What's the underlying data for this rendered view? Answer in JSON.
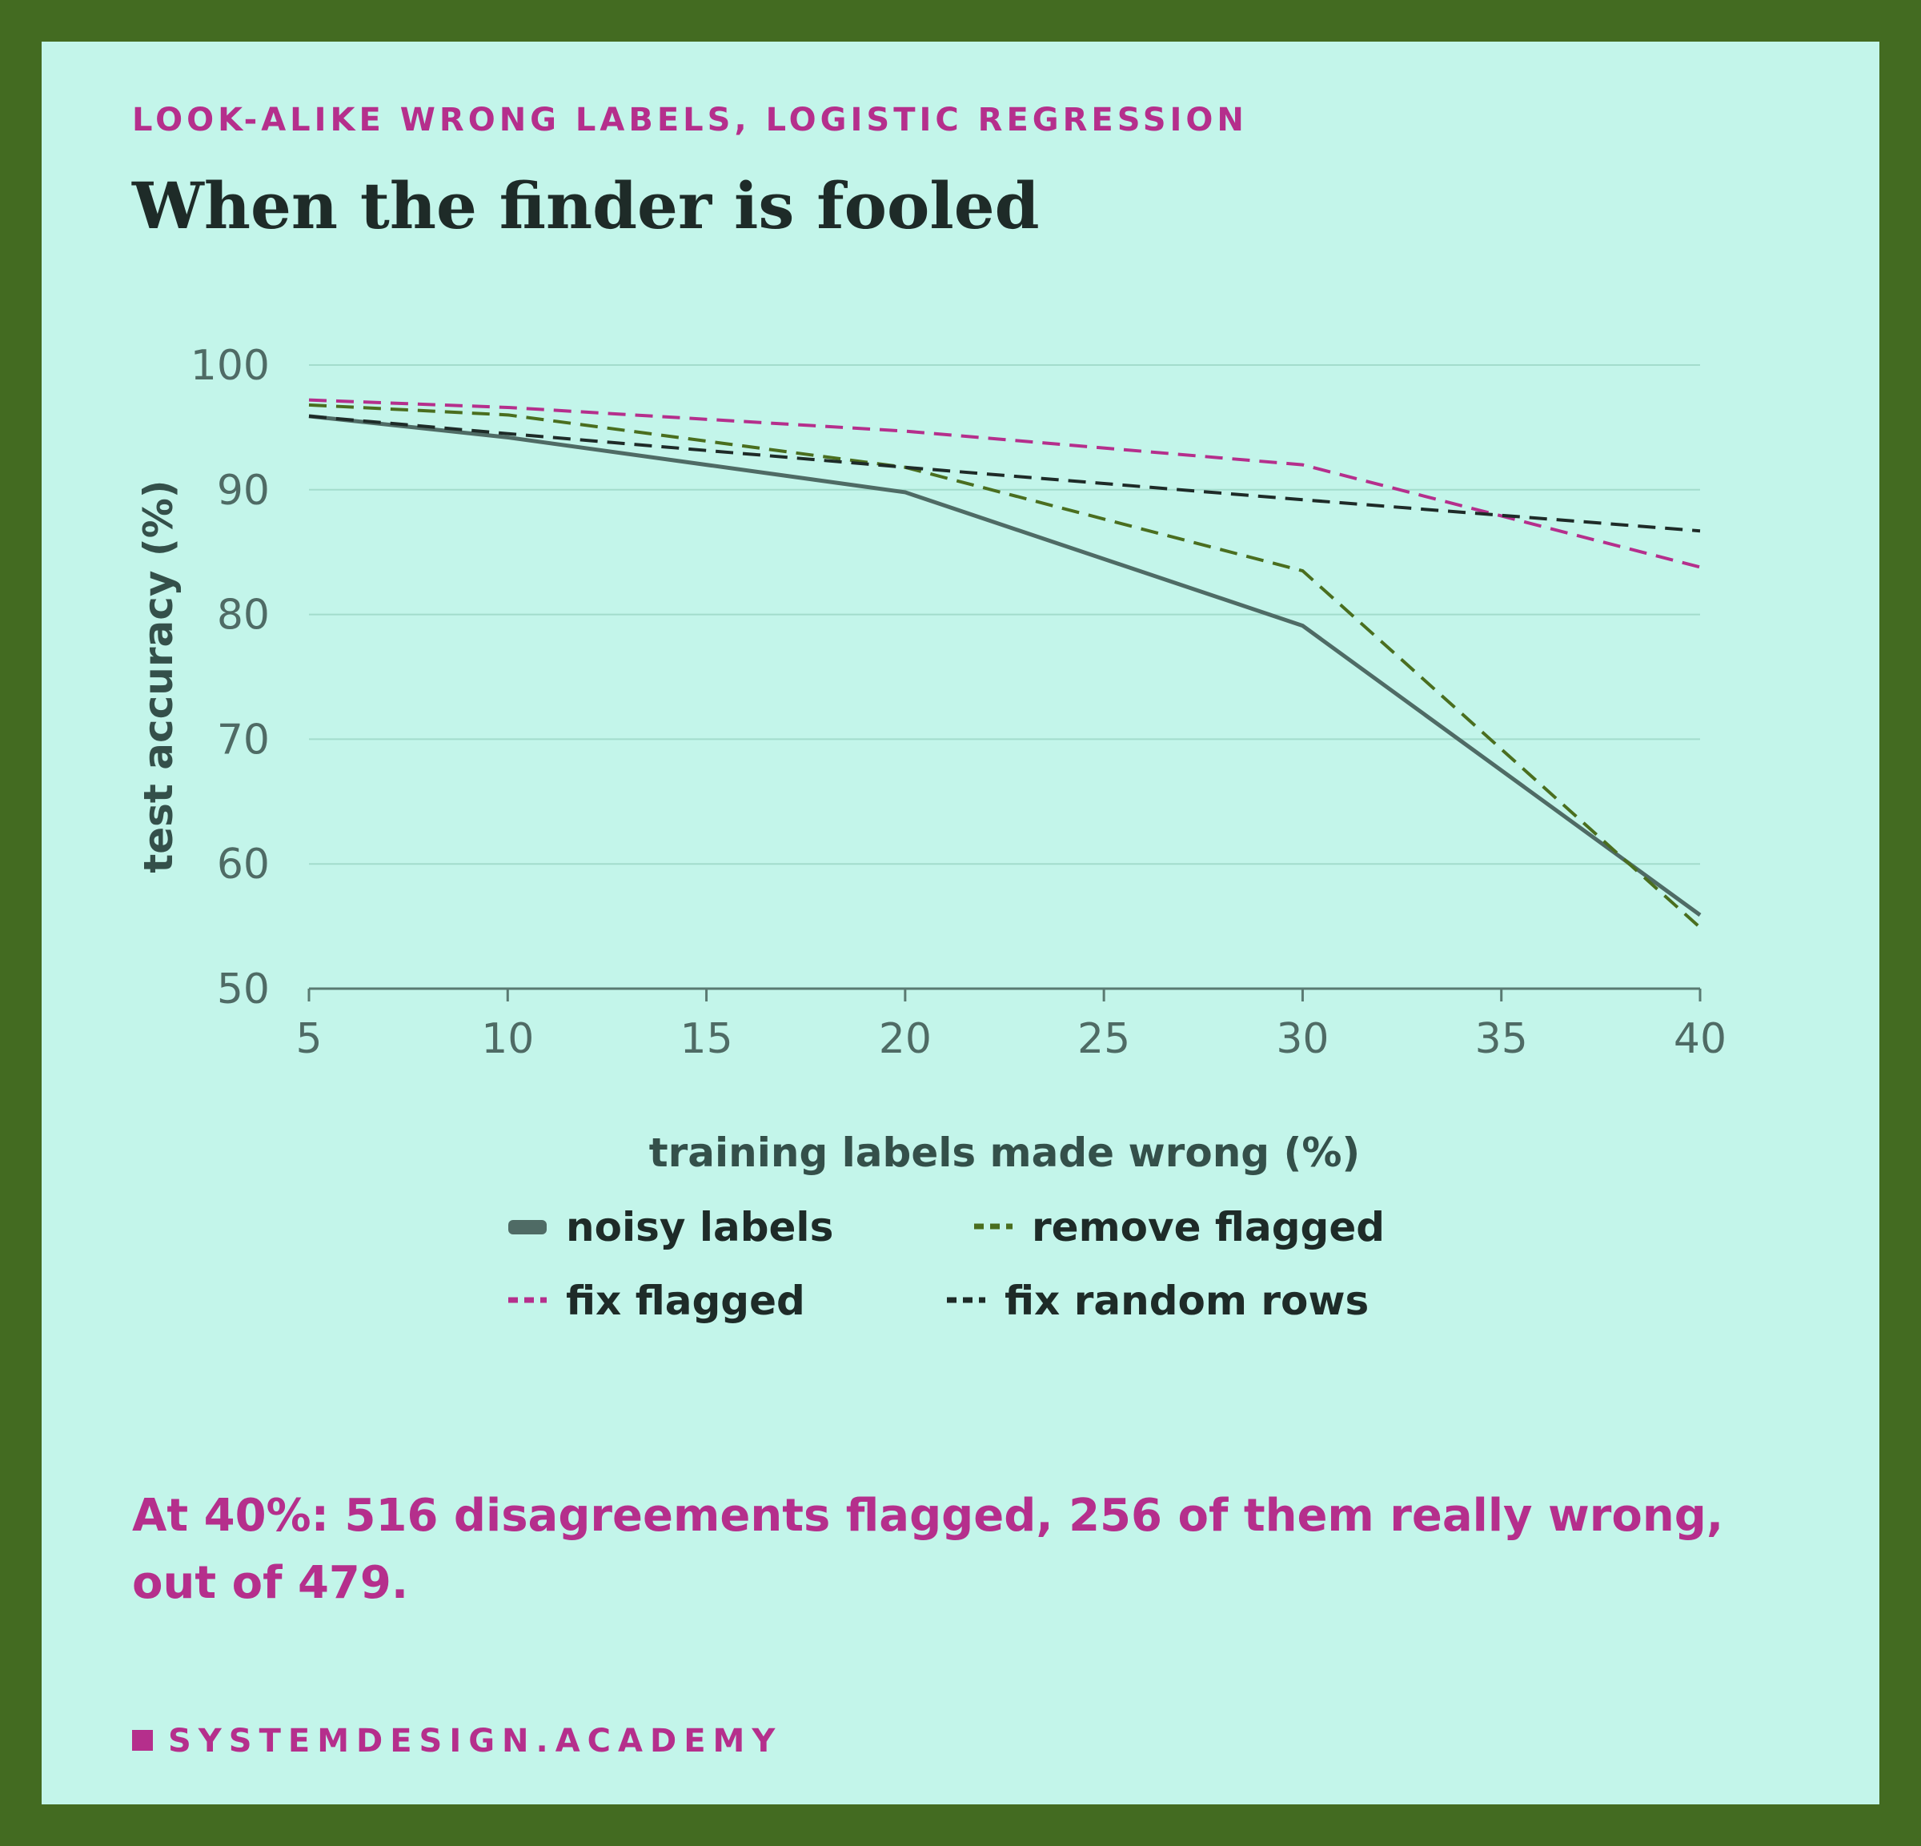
{
  "chart_data": {
    "type": "line",
    "subtitle": "LOOK-ALIKE WRONG LABELS, LOGISTIC REGRESSION",
    "title": "When the finder is fooled",
    "x_label": "training labels made wrong (%)",
    "y_label": "test accuracy (%)",
    "x": [
      5,
      10,
      20,
      30,
      40
    ],
    "xlim": [
      5,
      40
    ],
    "xticks": [
      5,
      10,
      15,
      20,
      25,
      30,
      35,
      40
    ],
    "ylim": [
      50,
      100
    ],
    "yticks": [
      50,
      60,
      70,
      80,
      90,
      100
    ],
    "grid": true,
    "series": [
      {
        "name": "noisy labels",
        "color": "#4f6b65",
        "dash": "solid",
        "values": [
          95.9,
          94.2,
          89.8,
          79.1,
          55.9
        ]
      },
      {
        "name": "remove flagged",
        "color": "#4a6e1f",
        "dash": "dashed",
        "values": [
          96.8,
          96.0,
          91.8,
          83.5,
          54.9
        ]
      },
      {
        "name": "fix flagged",
        "color": "#b52f8c",
        "dash": "dashed",
        "values": [
          97.2,
          96.6,
          94.7,
          92.0,
          83.8
        ]
      },
      {
        "name": "fix random rows",
        "color": "#1e2b28",
        "dash": "dashed",
        "values": [
          95.9,
          94.5,
          91.8,
          89.2,
          86.7
        ]
      }
    ],
    "note": "At 40%: 516 disagreements flagged, 256 of them really wrong, out of 479.",
    "footer": "SYSTEMDESIGN.ACADEMY"
  }
}
